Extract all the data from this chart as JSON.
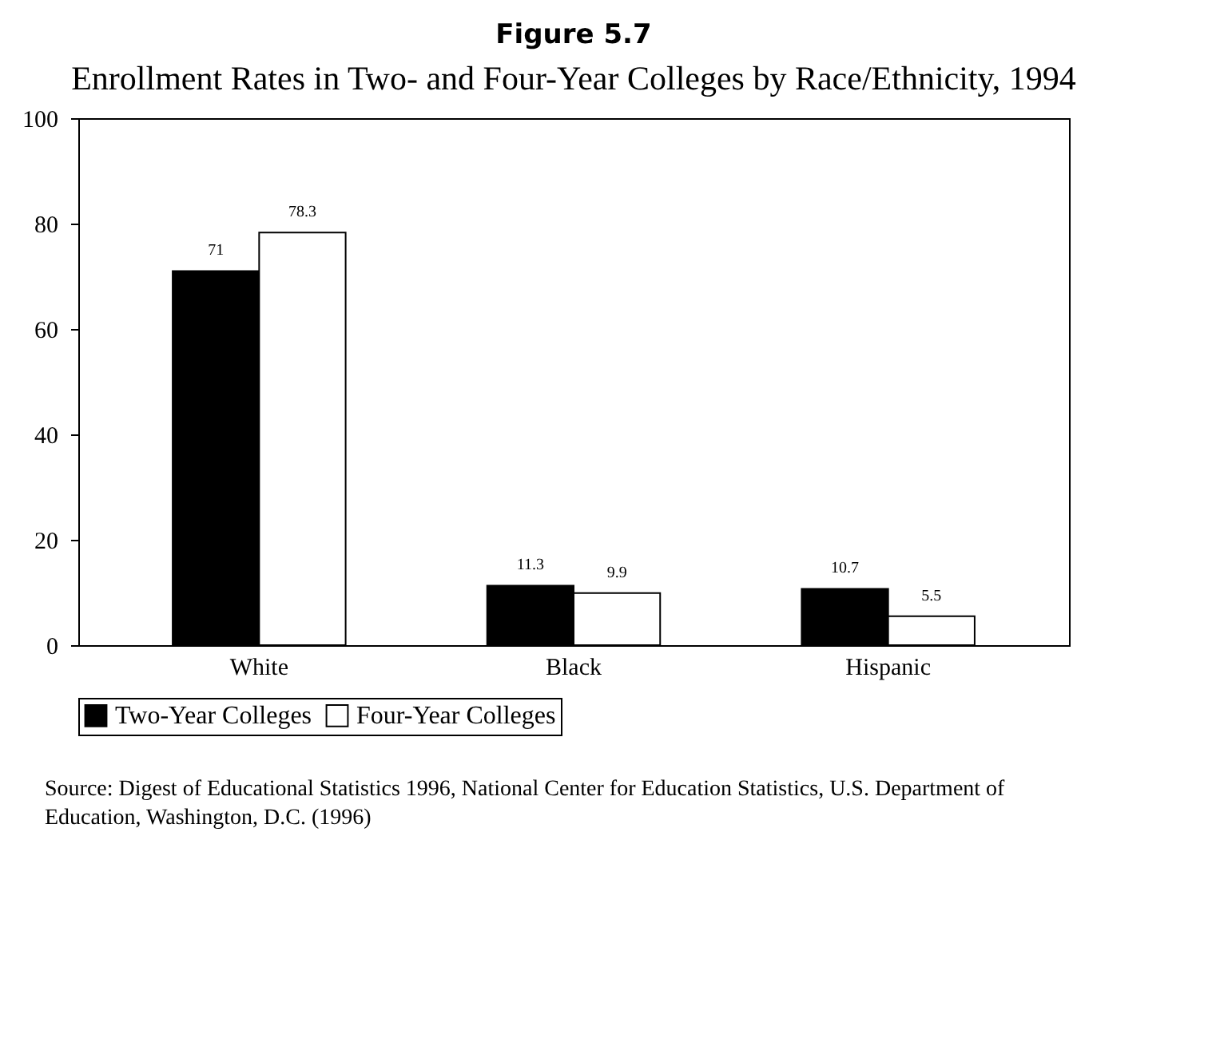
{
  "chart_data": {
    "type": "bar",
    "title": "Figure 5.7",
    "subtitle": "Enrollment Rates in Two- and Four-Year Colleges by Race/Ethnicity, 1994",
    "categories": [
      "White",
      "Black",
      "Hispanic"
    ],
    "series": [
      {
        "name": "Two-Year Colleges",
        "color": "#000000",
        "values": [
          71,
          11.3,
          10.7
        ]
      },
      {
        "name": "Four-Year Colleges",
        "color": "#ffffff",
        "values": [
          78.3,
          9.9,
          5.5
        ]
      }
    ],
    "ylim": [
      0,
      100
    ],
    "yticks": [
      0,
      20,
      40,
      60,
      80,
      100
    ],
    "grid": false,
    "legend": "bottom",
    "data_labels": true,
    "annotations": [
      "Source: Digest of Educational Statistics 1996, National Center for Education Statistics, U.S. Department of Education, Washington, D.C. (1996)"
    ]
  }
}
